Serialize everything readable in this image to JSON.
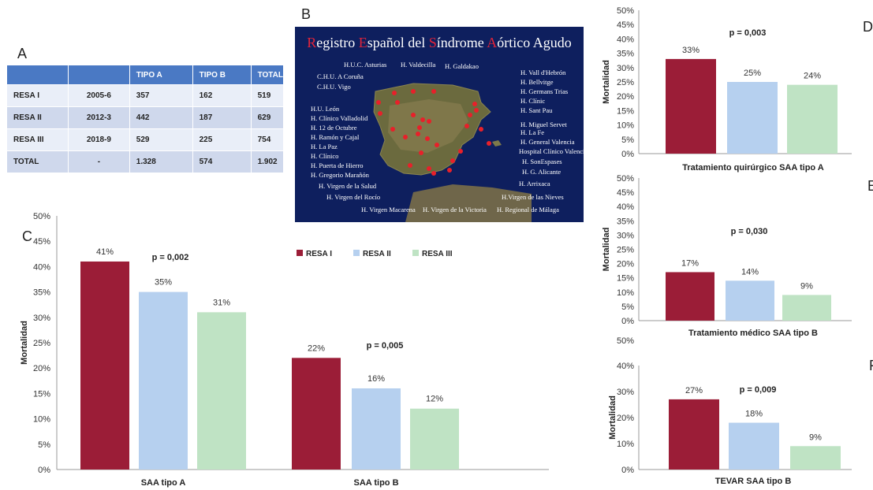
{
  "panels": {
    "a": "A",
    "b": "B",
    "c": "C",
    "d": "D",
    "e": "E",
    "f": "F"
  },
  "table": {
    "headers": [
      "",
      "",
      "TIPO A",
      "TIPO B",
      "TOTAL"
    ],
    "rows": [
      [
        "RESA I",
        "2005-6",
        "357",
        "162",
        "519"
      ],
      [
        "RESA II",
        "2012-3",
        "442",
        "187",
        "629"
      ],
      [
        "RESA III",
        "2018-9",
        "529",
        "225",
        "754"
      ],
      [
        "TOTAL",
        "-",
        "1.328",
        "574",
        "1.902"
      ]
    ]
  },
  "map": {
    "title_parts": [
      "R",
      "egistro ",
      "E",
      "spañol del ",
      "S",
      "índrome ",
      "A",
      "órtico Agudo"
    ],
    "hospitals_left": [
      "H.U.C. Asturias",
      "H. Valdecilla",
      "H. Galdakao",
      "C.H.U. A Coruña",
      "C.H.U. Vigo",
      "H.U. León",
      "H. Clínico Valladolid",
      "H. 12 de Octubre",
      "H. Ramón y Cajal",
      "H. La Paz",
      "H. Clínico",
      "H. Puerta de Hierro",
      "H. Gregorio Marañón",
      "H. Virgen de la Salud",
      "H. Virgen del Rocío",
      "H. Virgen Macarena",
      "H. Virgen de la Victoria",
      "H. Regional de Málaga"
    ],
    "hospitals_right": [
      "H. Vall d'Hebrón",
      "H. Bellvitge",
      "H. Germans Trias",
      "H. Clínic",
      "H. Sant Pau",
      "H. Miguel Servet",
      "H. La Fe",
      "H. General Valencia",
      "Hospital Clínico Valencia",
      "H. SonEspases",
      "H. G. Alicante",
      "H. Arrixaca",
      "H.Virgen de las Nieves"
    ]
  },
  "colors": {
    "resa1": "#9b1d37",
    "resa2": "#b6d0ef",
    "resa3": "#bfe3c4",
    "table_header": "#4a79c4",
    "map_bg": "#0e1f5e",
    "dot": "#e8202a"
  },
  "chart_data": [
    {
      "id": "C",
      "type": "bar",
      "categories": [
        "SAA tipo A",
        "SAA tipo B"
      ],
      "series": [
        {
          "name": "RESA I",
          "values": [
            41,
            22
          ]
        },
        {
          "name": "RESA II",
          "values": [
            35,
            16
          ]
        },
        {
          "name": "RESA III",
          "values": [
            31,
            12
          ]
        }
      ],
      "data_labels": [
        [
          "41%",
          "22%"
        ],
        [
          "35%",
          "16%"
        ],
        [
          "31%",
          "12%"
        ]
      ],
      "pvalues": [
        "p = 0,002",
        "p = 0,005"
      ],
      "ylabel": "Mortalidad",
      "ylim": [
        0,
        50
      ],
      "yticks": [
        "0%",
        "5%",
        "10%",
        "15%",
        "20%",
        "25%",
        "30%",
        "35%",
        "40%",
        "45%",
        "50%"
      ],
      "legend": [
        "RESA I",
        "RESA II",
        "RESA III"
      ],
      "legend_position": "top-right"
    },
    {
      "id": "D",
      "type": "bar",
      "values": [
        33,
        25,
        24
      ],
      "data_labels": [
        "33%",
        "25%",
        "24%"
      ],
      "pvalue": "p = 0,003",
      "xlabel": "Tratamiento quirúrgico SAA tipo A",
      "ylabel": "Mortalidad",
      "ylim": [
        0,
        50
      ],
      "yticks": [
        "0%",
        "5%",
        "10%",
        "15%",
        "20%",
        "25%",
        "30%",
        "35%",
        "40%",
        "45%",
        "50%"
      ]
    },
    {
      "id": "E",
      "type": "bar",
      "values": [
        17,
        14,
        9
      ],
      "data_labels": [
        "17%",
        "14%",
        "9%"
      ],
      "pvalue": "p = 0,030",
      "xlabel": "Tratamiento médico SAA tipo B",
      "ylabel": "Mortalidad",
      "ylim": [
        0,
        50
      ],
      "yticks": [
        "0%",
        "5%",
        "10%",
        "15%",
        "20%",
        "25%",
        "30%",
        "35%",
        "40%",
        "45%",
        "50%"
      ]
    },
    {
      "id": "F",
      "type": "bar",
      "values": [
        27,
        18,
        9
      ],
      "data_labels": [
        "27%",
        "18%",
        "9%"
      ],
      "pvalue": "p = 0,009",
      "xlabel": "TEVAR SAA tipo B",
      "ylabel": "Mortalidad",
      "ylim": [
        0,
        40
      ],
      "yticks": [
        "0%",
        "10%",
        "20%",
        "30%",
        "40%"
      ],
      "extra_label": "50%"
    }
  ]
}
